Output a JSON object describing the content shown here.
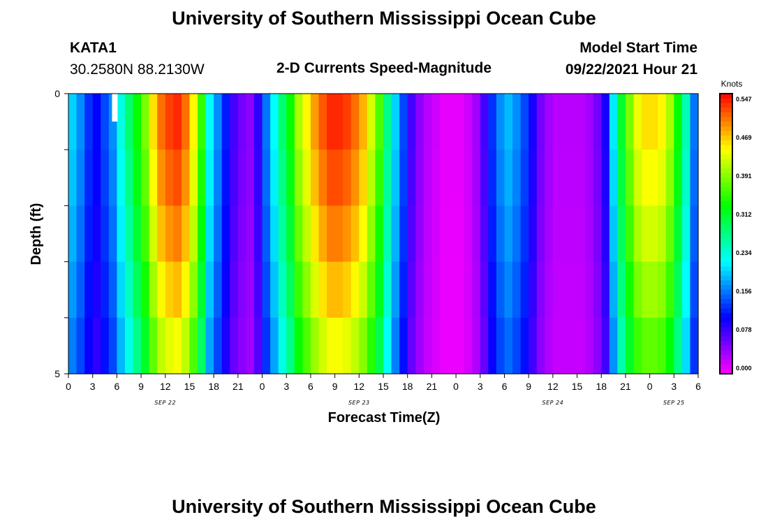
{
  "header": {
    "title": "University of Southern Mississippi Ocean Cube",
    "station_id": "KATA1",
    "station_coords": "30.2580N  88.2130W",
    "subtitle": "2-D Currents Speed-Magnitude",
    "model_label": "Model Start Time",
    "model_time": "09/22/2021 Hour 21"
  },
  "footer": {
    "title": "University of Southern Mississippi Ocean Cube"
  },
  "chart_data": {
    "type": "heatmap",
    "xlabel": "Forecast Time(Z)",
    "ylabel": "Depth (ft)",
    "x_range_hours": [
      0,
      78
    ],
    "y_range": [
      0,
      5
    ],
    "y_ticks": [
      "0",
      "5"
    ],
    "x_tick_labels": [
      "0",
      "3",
      "6",
      "9",
      "12",
      "15",
      "18",
      "21",
      "0",
      "3",
      "6",
      "9",
      "12",
      "15",
      "18",
      "21",
      "0",
      "3",
      "6",
      "9",
      "12",
      "15",
      "18",
      "21",
      "0",
      "3",
      "6"
    ],
    "date_labels": [
      {
        "label": "SEP 22",
        "hour": 12
      },
      {
        "label": "SEP 23",
        "hour": 36
      },
      {
        "label": "SEP 24",
        "hour": 60
      },
      {
        "label": "SEP 25",
        "hour": 75
      }
    ],
    "colorbar": {
      "unit": "Knots",
      "min": 0.0,
      "max": 0.547,
      "tick_labels": [
        "0.547",
        "0.469",
        "0.391",
        "0.312",
        "0.234",
        "0.156",
        "0.078",
        "0.000"
      ]
    },
    "depth_layers": 5,
    "surface_speed_by_hour": [
      0.2,
      0.17,
      0.13,
      0.11,
      0.14,
      0.17,
      0.23,
      0.28,
      0.33,
      0.38,
      0.45,
      0.5,
      0.52,
      0.53,
      0.5,
      0.44,
      0.35,
      0.22,
      0.17,
      0.12,
      0.08,
      0.06,
      0.05,
      0.09,
      0.16,
      0.22,
      0.28,
      0.33,
      0.4,
      0.44,
      0.48,
      0.51,
      0.53,
      0.53,
      0.52,
      0.5,
      0.47,
      0.42,
      0.36,
      0.27,
      0.2,
      0.14,
      0.08,
      0.05,
      0.03,
      0.02,
      0.01,
      0.01,
      0.01,
      0.02,
      0.04,
      0.08,
      0.13,
      0.17,
      0.19,
      0.17,
      0.14,
      0.1,
      0.06,
      0.04,
      0.03,
      0.03,
      0.03,
      0.03,
      0.04,
      0.06,
      0.1,
      0.21,
      0.31,
      0.38,
      0.43,
      0.45,
      0.45,
      0.44,
      0.4,
      0.33,
      0.25,
      0.16
    ],
    "depth_factors": [
      1.0,
      0.97,
      0.93,
      0.88,
      0.82
    ],
    "surface_anomaly": {
      "hour": 5,
      "note": "missing value"
    }
  }
}
